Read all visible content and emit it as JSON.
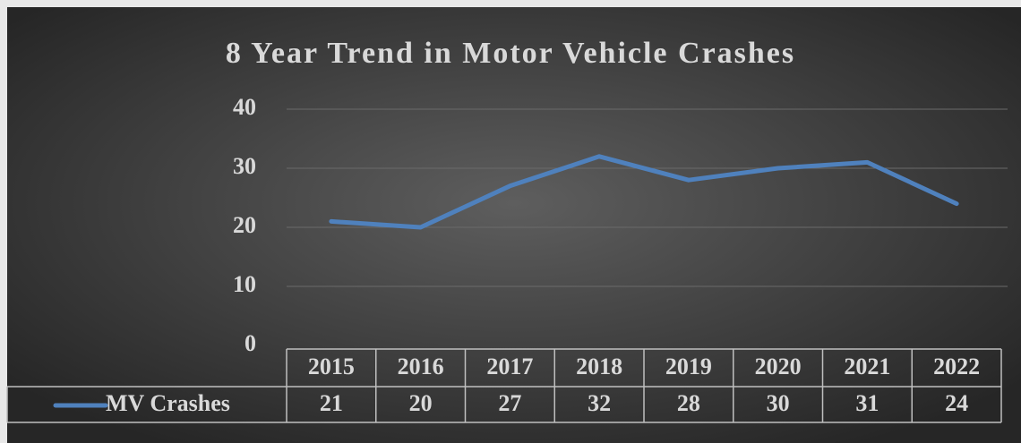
{
  "chart_data": {
    "type": "line",
    "title": "8 Year Trend in Motor Vehicle Crashes",
    "categories": [
      "2015",
      "2016",
      "2017",
      "2018",
      "2019",
      "2020",
      "2021",
      "2022"
    ],
    "series": [
      {
        "name": "MV Crashes",
        "color": "#4f81bd",
        "values": [
          21,
          20,
          27,
          32,
          28,
          30,
          31,
          24
        ]
      }
    ],
    "ylim": [
      0,
      40
    ],
    "yticks": [
      0,
      10,
      20,
      30,
      40
    ],
    "grid": true,
    "data_table": true
  }
}
